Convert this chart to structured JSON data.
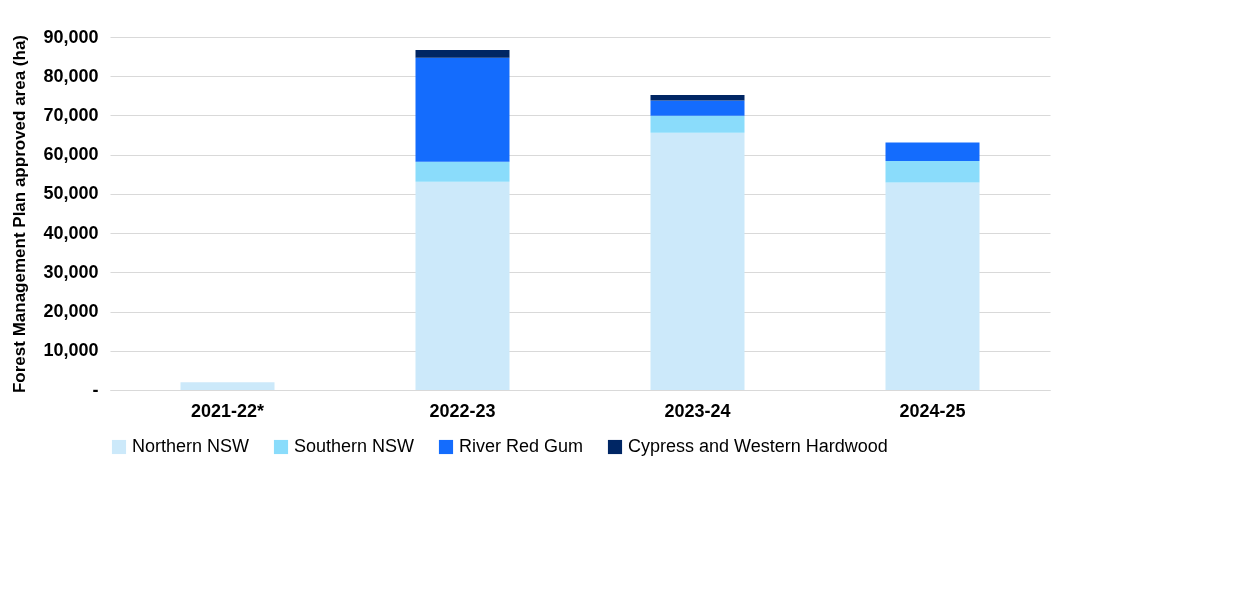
{
  "chart_data": {
    "type": "bar",
    "stacked": true,
    "ylabel": "Forest Management Plan approved area (ha)",
    "categories": [
      "2021-22*",
      "2022-23",
      "2023-24",
      "2024-25"
    ],
    "series": [
      {
        "name": "Northern NSW",
        "color": "#cce9fa",
        "values": [
          2000,
          53100,
          65600,
          52900
        ]
      },
      {
        "name": "Southern NSW",
        "color": "#8adcfb",
        "values": [
          null,
          5100,
          4300,
          5500
        ]
      },
      {
        "name": "River Red Gum",
        "color": "#146cfd",
        "values": [
          null,
          26500,
          3900,
          4700
        ]
      },
      {
        "name": "Cypress and Western Hardwood",
        "color": "#002664",
        "values": [
          null,
          2000,
          1400,
          null
        ]
      }
    ],
    "ylim": [
      0,
      90000
    ],
    "yticks": [
      {
        "value": 0,
        "label": "-"
      },
      {
        "value": 10000,
        "label": "10,000"
      },
      {
        "value": 20000,
        "label": "20,000"
      },
      {
        "value": 30000,
        "label": "30,000"
      },
      {
        "value": 40000,
        "label": "40,000"
      },
      {
        "value": 50000,
        "label": "50,000"
      },
      {
        "value": 60000,
        "label": "60,000"
      },
      {
        "value": 70000,
        "label": "70,000"
      },
      {
        "value": 80000,
        "label": "80,000"
      },
      {
        "value": 90000,
        "label": "90,000"
      }
    ],
    "grid": "y",
    "legend": "bottom"
  }
}
